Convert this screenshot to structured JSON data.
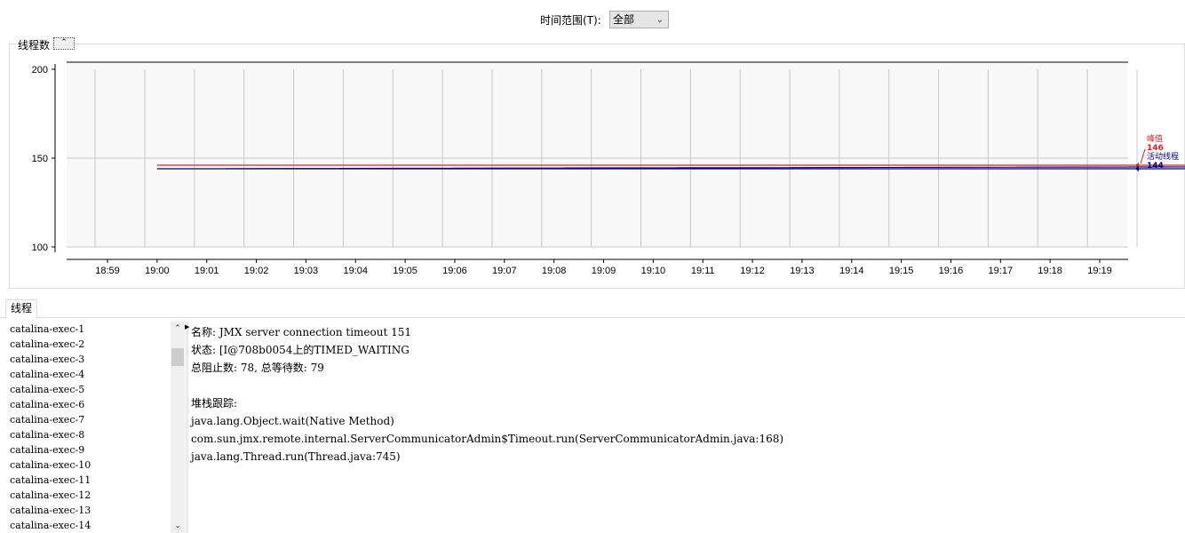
{
  "time_range": {
    "label": "时间范围(T):",
    "selected": "全部"
  },
  "chart_panel": {
    "title": "线程数",
    "collapse_icon": "double-chevron-up-icon"
  },
  "chart_data": {
    "type": "line",
    "title": "线程数",
    "ylim": [
      100,
      200
    ],
    "yticks": [
      100,
      150,
      200
    ],
    "xticks": [
      "18:59",
      "19:00",
      "19:01",
      "19:02",
      "19:03",
      "19:04",
      "19:05",
      "19:06",
      "19:07",
      "19:08",
      "19:09",
      "19:10",
      "19:11",
      "19:12",
      "19:13",
      "19:14",
      "19:15",
      "19:16",
      "19:17",
      "19:18",
      "19:19"
    ],
    "series": [
      {
        "name": "峰值",
        "color": "#e02020",
        "x": [
          18.965,
          19.0,
          19.34
        ],
        "y": [
          146,
          146,
          146
        ],
        "last": "146"
      },
      {
        "name": "活动线程",
        "color": "#000080",
        "x": [
          18.95,
          18.955,
          18.985,
          19.0,
          19.34
        ],
        "y": [
          144,
          146,
          146,
          144,
          144
        ],
        "last": "144"
      }
    ],
    "grid": true,
    "legend": "right"
  },
  "tabs": {
    "threads": "线程"
  },
  "threads": [
    "catalina-exec-1",
    "catalina-exec-2",
    "catalina-exec-3",
    "catalina-exec-4",
    "catalina-exec-5",
    "catalina-exec-6",
    "catalina-exec-7",
    "catalina-exec-8",
    "catalina-exec-9",
    "catalina-exec-10",
    "catalina-exec-11",
    "catalina-exec-12",
    "catalina-exec-13",
    "catalina-exec-14"
  ],
  "details": {
    "lines": [
      "名称: JMX server connection timeout 151",
      "状态: [I@708b0054上的TIMED_WAITING",
      "总阻止数: 78, 总等待数: 79",
      "",
      "堆栈跟踪:",
      "java.lang.Object.wait(Native Method)",
      "com.sun.jmx.remote.internal.ServerCommunicatorAdmin$Timeout.run(ServerCommunicatorAdmin.java:168)",
      "java.lang.Thread.run(Thread.java:745)"
    ]
  }
}
